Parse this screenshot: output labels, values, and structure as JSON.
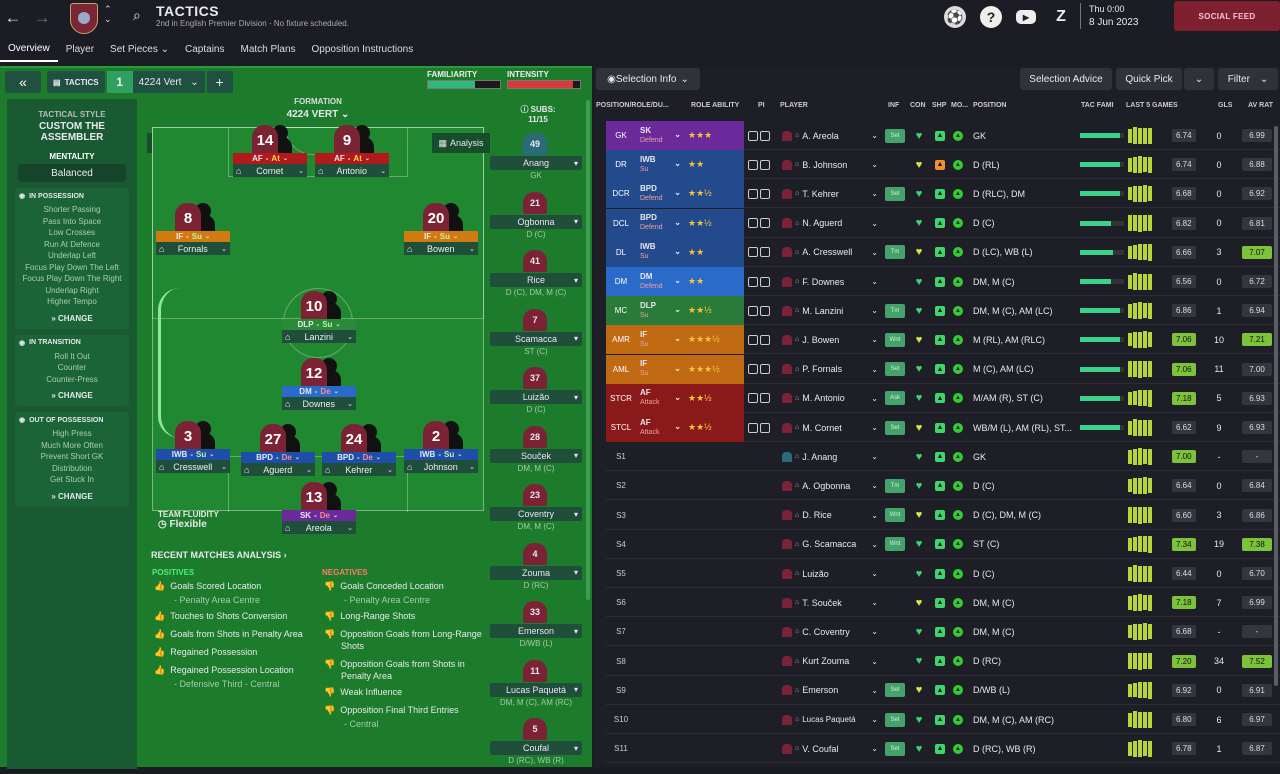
{
  "header": {
    "title": "TACTICS",
    "subtitle": "2nd in English Premier Division - No fixture scheduled.",
    "date_day": "Thu 0:00",
    "date": "8 Jun 2023",
    "social_feed": "SOCIAL FEED"
  },
  "tabs": [
    "Overview",
    "Player",
    "Set Pieces ⌄",
    "Captains",
    "Match Plans",
    "Opposition Instructions"
  ],
  "tactic": {
    "tag": "TACTICS",
    "slot": "1",
    "name": "4224 Vert",
    "familiarity_label": "FAMILIARITY",
    "intensity_label": "INTENSITY",
    "familiarity": 0.65,
    "intensity": 0.9
  },
  "sidebar": {
    "style_label": "TACTICAL STYLE",
    "style": "CUSTOM THE ASSEMBLER",
    "mentality_label": "MENTALITY",
    "mentality": "Balanced",
    "possession": {
      "title": "IN POSSESSION",
      "items": [
        "Shorter Passing",
        "Pass Into Space",
        "Low Crosses",
        "Run At Defence",
        "Underlap Left",
        "Focus Play Down The Left",
        "Focus Play Down The Right",
        "Underlap Right",
        "Higher Tempo"
      ]
    },
    "transition": {
      "title": "IN TRANSITION",
      "items": [
        "Roll It Out",
        "Counter",
        "Counter-Press"
      ]
    },
    "oop": {
      "title": "OUT OF POSSESSION",
      "items": [
        "High Press",
        "Much More Often",
        "Prevent Short GK",
        "Distribution",
        "Get Stuck In"
      ]
    },
    "change": "CHANGE"
  },
  "formation": {
    "label": "FORMATION",
    "value": "4224 VERT",
    "analysis": "Analysis",
    "team_fluidity_label": "TEAM FLUIDITY",
    "team_fluidity": "Flexible"
  },
  "pitch_players": [
    {
      "num": "14",
      "role": "AF",
      "duty": "At",
      "name": "Cornet"
    },
    {
      "num": "9",
      "role": "AF",
      "duty": "At",
      "name": "Antonio"
    },
    {
      "num": "8",
      "role": "IF",
      "duty": "Su",
      "name": "Fornals"
    },
    {
      "num": "20",
      "role": "IF",
      "duty": "Su",
      "name": "Bowen"
    },
    {
      "num": "10",
      "role": "DLP",
      "duty": "Su",
      "name": "Lanzini"
    },
    {
      "num": "12",
      "role": "DM",
      "duty": "De",
      "name": "Downes"
    },
    {
      "num": "3",
      "role": "IWB",
      "duty": "Su",
      "name": "Cresswell"
    },
    {
      "num": "27",
      "role": "BPD",
      "duty": "De",
      "name": "Aguerd"
    },
    {
      "num": "24",
      "role": "BPD",
      "duty": "De",
      "name": "Kehrer"
    },
    {
      "num": "2",
      "role": "IWB",
      "duty": "Su",
      "name": "Johnson"
    },
    {
      "num": "13",
      "role": "SK",
      "duty": "De",
      "name": "Areola"
    }
  ],
  "subs": {
    "label": "SUBS:",
    "count": "11/15",
    "list": [
      {
        "num": "49",
        "name": "Anang",
        "pos": "GK"
      },
      {
        "num": "21",
        "name": "Ogbonna",
        "pos": "D (C)"
      },
      {
        "num": "41",
        "name": "Rice",
        "pos": "D (C), DM, M (C)"
      },
      {
        "num": "7",
        "name": "Scamacca",
        "pos": "ST (C)"
      },
      {
        "num": "37",
        "name": "Luizão",
        "pos": "D (C)"
      },
      {
        "num": "28",
        "name": "Souček",
        "pos": "DM, M (C)"
      },
      {
        "num": "23",
        "name": "Coventry",
        "pos": "DM, M (C)"
      },
      {
        "num": "4",
        "name": "Zouma",
        "pos": "D (RC)"
      },
      {
        "num": "33",
        "name": "Emerson",
        "pos": "D/WB (L)"
      },
      {
        "num": "11",
        "name": "Lucas Paquetá",
        "pos": "DM, M (C), AM (RC)"
      },
      {
        "num": "5",
        "name": "Coufal",
        "pos": "D (RC), WB (R)"
      }
    ]
  },
  "analysis": {
    "title": "RECENT MATCHES ANALYSIS ›",
    "positives_label": "POSITIVES",
    "negatives_label": "NEGATIVES",
    "positives": [
      "Goals Scored Location",
      "- Penalty Area Centre",
      "Touches to Shots Conversion",
      "Goals from Shots in Penalty Area",
      "Regained Possession",
      "Regained Possession Location",
      "- Defensive Third - Central"
    ],
    "negatives": [
      "Goals Conceded Location",
      "- Penalty Area Centre",
      "Long-Range Shots",
      "Opposition Goals from Long-Range Shots",
      "Opposition Goals from Shots in Penalty Area",
      "Weak Influence",
      "Opposition Final Third Entries",
      "- Central"
    ]
  },
  "right_toolbar": {
    "selection_info": "Selection Info",
    "selection_advice": "Selection Advice",
    "quick_pick": "Quick Pick",
    "filter": "Filter"
  },
  "columns": [
    "POSITION/ROLE/DU...",
    "ROLE ABILITY",
    "PI",
    "PLAYER",
    "INF",
    "CON",
    "SHP",
    "MO...",
    "POSITION",
    "TAC FAMI",
    "LAST 5 GAMES",
    "GLS",
    "AV RAT"
  ],
  "squad": [
    {
      "pos": "GK",
      "role": "SK",
      "duty": "Defend",
      "stars": "★★★",
      "name": "A. Areola",
      "inf": "Set",
      "con": "♥",
      "position": "GK",
      "tac": 0.9,
      "rating": "6.74",
      "gls": "0",
      "avr": "6.99",
      "color": "#6a2a9a"
    },
    {
      "pos": "DR",
      "role": "IWB",
      "duty": "Su",
      "stars": "★★",
      "name": "B. Johnson",
      "inf": "",
      "con": "♥",
      "position": "D (RL)",
      "tac": 0.9,
      "rating": "6.74",
      "gls": "0",
      "avr": "6.88",
      "color": "#234a8c"
    },
    {
      "pos": "DCR",
      "role": "BPD",
      "duty": "Defend",
      "stars": "★★½",
      "name": "T. Kehrer",
      "inf": "Set",
      "con": "♥",
      "position": "D (RLC), DM",
      "tac": 0.9,
      "rating": "6.68",
      "gls": "0",
      "avr": "6.92",
      "color": "#234a8c"
    },
    {
      "pos": "DCL",
      "role": "BPD",
      "duty": "Defend",
      "stars": "★★½",
      "name": "N. Aguerd",
      "inf": "",
      "con": "♥",
      "position": "D (C)",
      "tac": 0.7,
      "rating": "6.82",
      "gls": "0",
      "avr": "6.81",
      "color": "#234a8c"
    },
    {
      "pos": "DL",
      "role": "IWB",
      "duty": "Su",
      "stars": "★★",
      "name": "A. Cresswell",
      "inf": "Tm",
      "con": "♥",
      "position": "D (LC), WB (L)",
      "tac": 0.75,
      "rating": "6.66",
      "gls": "3",
      "avr": "7.07",
      "color": "#234a8c"
    },
    {
      "pos": "DM",
      "role": "DM",
      "duty": "Defend",
      "stars": "★★",
      "name": "F. Downes",
      "inf": "",
      "con": "♥",
      "position": "DM, M (C)",
      "tac": 0.7,
      "rating": "6.56",
      "gls": "0",
      "avr": "6.72",
      "color": "#2a6ac8"
    },
    {
      "pos": "MC",
      "role": "DLP",
      "duty": "Su",
      "stars": "★★½",
      "name": "M. Lanzini",
      "inf": "Tm",
      "con": "♥",
      "position": "DM, M (C), AM (LC)",
      "tac": 0.9,
      "rating": "6.86",
      "gls": "1",
      "avr": "6.94",
      "color": "#2a7a3a"
    },
    {
      "pos": "AMR",
      "role": "IF",
      "duty": "Su",
      "stars": "★★★½",
      "name": "J. Bowen",
      "inf": "Wnt",
      "con": "♥",
      "position": "M (RL), AM (RLC)",
      "tac": 0.9,
      "rating": "7.06",
      "gls": "10",
      "avr": "7.21",
      "color": "#c06a14"
    },
    {
      "pos": "AML",
      "role": "IF",
      "duty": "Su",
      "stars": "★★★½",
      "name": "P. Fornals",
      "inf": "Set",
      "con": "♥",
      "position": "M (C), AM (LC)",
      "tac": 0.9,
      "rating": "7.06",
      "gls": "11",
      "avr": "7.00",
      "color": "#c06a14"
    },
    {
      "pos": "STCR",
      "role": "AF",
      "duty": "Attack",
      "stars": "★★½",
      "name": "M. Antonio",
      "inf": "Ask",
      "con": "♥",
      "position": "M/AM (R), ST (C)",
      "tac": 0.9,
      "rating": "7.18",
      "gls": "5",
      "avr": "6.93",
      "color": "#8a1a1a"
    },
    {
      "pos": "STCL",
      "role": "AF",
      "duty": "Attack",
      "stars": "★★½",
      "name": "M. Cornet",
      "inf": "Set",
      "con": "♥",
      "position": "WB/M (L), AM (RL), ST...",
      "tac": 0.9,
      "rating": "6.62",
      "gls": "9",
      "avr": "6.93",
      "color": "#8a1a1a"
    },
    {
      "pos": "S1",
      "role": "",
      "duty": "",
      "stars": "",
      "name": "J. Anang",
      "inf": "",
      "con": "♥",
      "position": "GK",
      "tac": 0,
      "rating": "7.00",
      "gls": "-",
      "avr": "-",
      "color": ""
    },
    {
      "pos": "S2",
      "role": "",
      "duty": "",
      "stars": "",
      "name": "A. Ogbonna",
      "inf": "Tm",
      "con": "♥",
      "position": "D (C)",
      "tac": 0,
      "rating": "6.64",
      "gls": "0",
      "avr": "6.84",
      "color": ""
    },
    {
      "pos": "S3",
      "role": "",
      "duty": "",
      "stars": "",
      "name": "D. Rice",
      "inf": "Wnt",
      "con": "♥",
      "position": "D (C), DM, M (C)",
      "tac": 0,
      "rating": "6.60",
      "gls": "3",
      "avr": "6.86",
      "color": ""
    },
    {
      "pos": "S4",
      "role": "",
      "duty": "",
      "stars": "",
      "name": "G. Scamacca",
      "inf": "Wnt",
      "con": "♥",
      "position": "ST (C)",
      "tac": 0,
      "rating": "7.34",
      "gls": "19",
      "avr": "7.38",
      "color": ""
    },
    {
      "pos": "S5",
      "role": "",
      "duty": "",
      "stars": "",
      "name": "Luizão",
      "inf": "",
      "con": "♥",
      "position": "D (C)",
      "tac": 0,
      "rating": "6.44",
      "gls": "0",
      "avr": "6.70",
      "color": ""
    },
    {
      "pos": "S6",
      "role": "",
      "duty": "",
      "stars": "",
      "name": "T. Souček",
      "inf": "",
      "con": "♥",
      "position": "DM, M (C)",
      "tac": 0,
      "rating": "7.18",
      "gls": "7",
      "avr": "6.99",
      "color": ""
    },
    {
      "pos": "S7",
      "role": "",
      "duty": "",
      "stars": "",
      "name": "C. Coventry",
      "inf": "",
      "con": "♥",
      "position": "DM, M (C)",
      "tac": 0,
      "rating": "6.68",
      "gls": "-",
      "avr": "-",
      "color": ""
    },
    {
      "pos": "S8",
      "role": "",
      "duty": "",
      "stars": "",
      "name": "Kurt Zouma",
      "inf": "",
      "con": "♥",
      "position": "D (RC)",
      "tac": 0,
      "rating": "7.20",
      "gls": "34",
      "avr": "7.52",
      "color": ""
    },
    {
      "pos": "S9",
      "role": "",
      "duty": "",
      "stars": "",
      "name": "Emerson",
      "inf": "Set",
      "con": "♥",
      "position": "D/WB (L)",
      "tac": 0,
      "rating": "6.92",
      "gls": "0",
      "avr": "6.91",
      "color": ""
    },
    {
      "pos": "S10",
      "role": "",
      "duty": "",
      "stars": "",
      "name": "Lucas Paquetá",
      "inf": "Set",
      "con": "♥",
      "position": "DM, M (C), AM (RC)",
      "tac": 0,
      "rating": "6.80",
      "gls": "6",
      "avr": "6.97",
      "color": ""
    },
    {
      "pos": "S11",
      "role": "",
      "duty": "",
      "stars": "",
      "name": "V. Coufal",
      "inf": "Set",
      "con": "♥",
      "position": "D (RC), WB (R)",
      "tac": 0,
      "rating": "6.78",
      "gls": "1",
      "avr": "6.87",
      "color": ""
    }
  ]
}
